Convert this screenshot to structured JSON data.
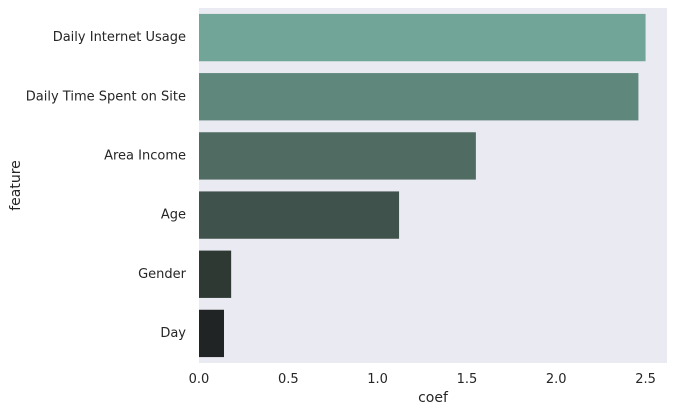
{
  "chart_data": {
    "type": "bar",
    "orientation": "horizontal",
    "categories": [
      "Daily Internet Usage",
      "Daily Time Spent on Site",
      "Area Income",
      "Age",
      "Gender",
      "Day"
    ],
    "values": [
      2.5,
      2.46,
      1.55,
      1.12,
      0.18,
      0.14
    ],
    "bar_colors": [
      "#70a597",
      "#5f877b",
      "#4f6b62",
      "#3f524b",
      "#2f3934",
      "#212424"
    ],
    "xlabel": "coef",
    "ylabel": "feature",
    "xlim": [
      0,
      2.62
    ],
    "xticks": [
      0.0,
      0.5,
      1.0,
      1.5,
      2.0,
      2.5
    ],
    "xtick_labels": [
      "0.0",
      "0.5",
      "1.0",
      "1.5",
      "2.0",
      "2.5"
    ],
    "grid": false,
    "background": "#eaeaf2"
  }
}
